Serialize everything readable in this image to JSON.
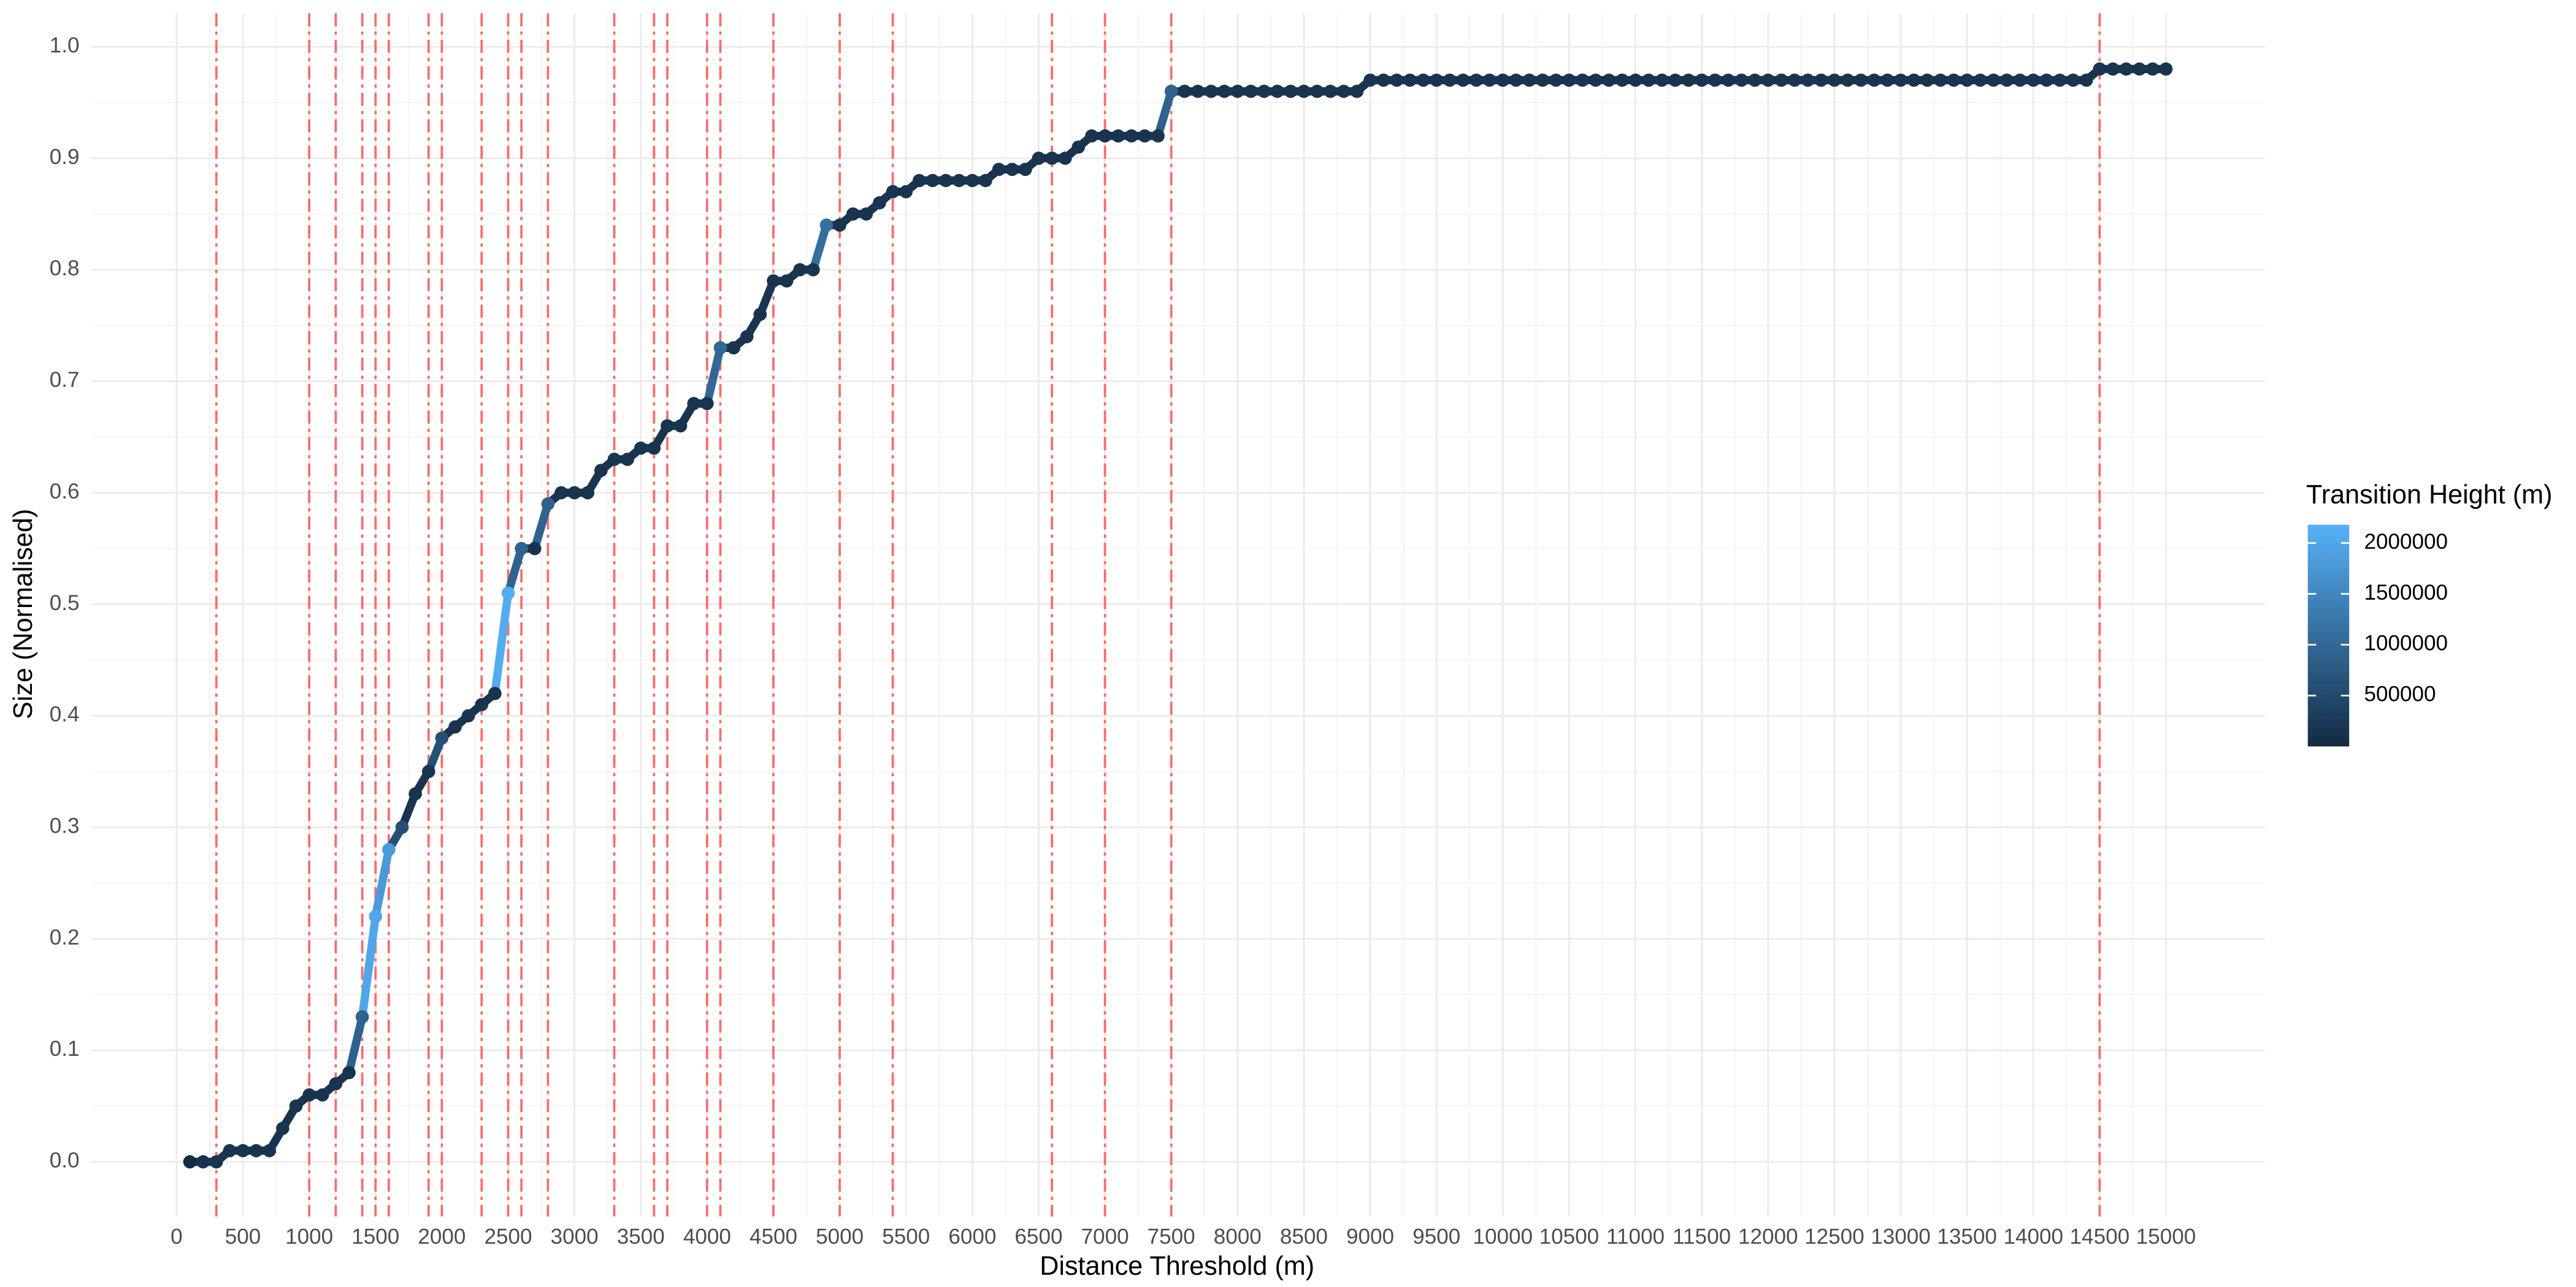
{
  "chart_data": {
    "type": "line",
    "xlabel": "Distance Threshold (m)",
    "ylabel": "Size (Normalised)",
    "x": [
      100,
      200,
      300,
      400,
      500,
      600,
      700,
      800,
      900,
      1000,
      1100,
      1200,
      1300,
      1400,
      1500,
      1600,
      1700,
      1800,
      1900,
      2000,
      2100,
      2200,
      2300,
      2400,
      2500,
      2600,
      2700,
      2800,
      2900,
      3000,
      3100,
      3200,
      3300,
      3400,
      3500,
      3600,
      3700,
      3800,
      3900,
      4000,
      4100,
      4200,
      4300,
      4400,
      4500,
      4600,
      4700,
      4800,
      4900,
      5000,
      5100,
      5200,
      5300,
      5400,
      5500,
      5600,
      5700,
      5800,
      5900,
      6000,
      6100,
      6200,
      6300,
      6400,
      6500,
      6600,
      6700,
      6800,
      6900,
      7000,
      7100,
      7200,
      7300,
      7400,
      7500,
      7600,
      7700,
      7800,
      7900,
      8000,
      8100,
      8200,
      8300,
      8400,
      8500,
      8600,
      8700,
      8800,
      8900,
      9000,
      9100,
      9200,
      9300,
      9400,
      9500,
      9600,
      9700,
      9800,
      9900,
      10000,
      10100,
      10200,
      10300,
      10400,
      10500,
      10600,
      10700,
      10800,
      10900,
      11000,
      11100,
      11200,
      11300,
      11400,
      11500,
      11600,
      11700,
      11800,
      11900,
      12000,
      12100,
      12200,
      12300,
      12400,
      12500,
      12600,
      12700,
      12800,
      12900,
      13000,
      13100,
      13200,
      13300,
      13400,
      13500,
      13600,
      13700,
      13800,
      13900,
      14000,
      14100,
      14200,
      14300,
      14400,
      14500,
      14600,
      14700,
      14800,
      14900,
      15000
    ],
    "series": [
      {
        "values": [
          0,
          0,
          0,
          0.01,
          0.01,
          0.01,
          0.01,
          0.03,
          0.05,
          0.06,
          0.06,
          0.07,
          0.08,
          0.13,
          0.22,
          0.28,
          0.3,
          0.33,
          0.35,
          0.38,
          0.39,
          0.4,
          0.41,
          0.42,
          0.51,
          0.55,
          0.55,
          0.59,
          0.6,
          0.6,
          0.6,
          0.62,
          0.63,
          0.63,
          0.64,
          0.64,
          0.66,
          0.66,
          0.68,
          0.68,
          0.73,
          0.73,
          0.74,
          0.76,
          0.79,
          0.79,
          0.8,
          0.8,
          0.84,
          0.84,
          0.85,
          0.85,
          0.86,
          0.87,
          0.87,
          0.88,
          0.88,
          0.88,
          0.88,
          0.88,
          0.88,
          0.89,
          0.89,
          0.89,
          0.9,
          0.9,
          0.9,
          0.91,
          0.92,
          0.92,
          0.92,
          0.92,
          0.92,
          0.92,
          0.96,
          0.96,
          0.96,
          0.96,
          0.96,
          0.96,
          0.96,
          0.96,
          0.96,
          0.96,
          0.96,
          0.96,
          0.96,
          0.96,
          0.96,
          0.97,
          0.97,
          0.97,
          0.97,
          0.97,
          0.97,
          0.97,
          0.97,
          0.97,
          0.97,
          0.97,
          0.97,
          0.97,
          0.97,
          0.97,
          0.97,
          0.97,
          0.97,
          0.97,
          0.97,
          0.97,
          0.97,
          0.97,
          0.97,
          0.97,
          0.97,
          0.97,
          0.97,
          0.97,
          0.97,
          0.97,
          0.97,
          0.97,
          0.97,
          0.97,
          0.97,
          0.97,
          0.97,
          0.97,
          0.97,
          0.97,
          0.97,
          0.97,
          0.97,
          0.97,
          0.97,
          0.97,
          0.97,
          0.97,
          0.97,
          0.97,
          0.97,
          0.97,
          0.97,
          0.97,
          0.98,
          0.98,
          0.98,
          0.98,
          0.98,
          0.98
        ],
        "color_values": [
          null,
          150000,
          150000,
          150000,
          150000,
          150000,
          150000,
          150000,
          150000,
          150000,
          150000,
          150000,
          150000,
          900000,
          2000000,
          1800000,
          600000,
          150000,
          150000,
          600000,
          150000,
          150000,
          150000,
          150000,
          2100000,
          900000,
          150000,
          900000,
          150000,
          150000,
          150000,
          150000,
          150000,
          150000,
          150000,
          150000,
          150000,
          150000,
          150000,
          150000,
          1000000,
          150000,
          150000,
          150000,
          150000,
          150000,
          150000,
          150000,
          1100000,
          150000,
          150000,
          150000,
          150000,
          150000,
          150000,
          150000,
          150000,
          150000,
          150000,
          150000,
          150000,
          150000,
          150000,
          150000,
          150000,
          150000,
          150000,
          150000,
          150000,
          150000,
          150000,
          150000,
          150000,
          150000,
          900000,
          150000,
          150000,
          150000,
          150000,
          150000,
          150000,
          150000,
          150000,
          150000,
          150000,
          150000,
          150000,
          150000,
          150000,
          150000,
          150000,
          150000,
          150000,
          150000,
          150000,
          150000,
          150000,
          150000,
          150000,
          150000,
          150000,
          150000,
          150000,
          150000,
          150000,
          150000,
          150000,
          150000,
          150000,
          150000,
          150000,
          150000,
          150000,
          150000,
          150000,
          150000,
          150000,
          150000,
          150000,
          150000,
          150000,
          150000,
          150000,
          150000,
          150000,
          150000,
          150000,
          150000,
          150000,
          150000,
          150000,
          150000,
          150000,
          150000,
          150000,
          150000,
          150000,
          150000,
          150000,
          150000,
          150000,
          150000,
          150000,
          150000,
          150000,
          150000,
          150000,
          150000,
          150000,
          150000
        ]
      }
    ],
    "color_scale": {
      "title": "Transition Height (m)",
      "low": "#132B43",
      "high": "#56B1F7",
      "limits": [
        0,
        2180000
      ],
      "ticks": [
        500000,
        1000000,
        1500000,
        2000000
      ]
    },
    "vlines": [
      300,
      1000,
      1200,
      1400,
      1500,
      1600,
      1900,
      2000,
      2300,
      2500,
      2600,
      2800,
      3300,
      3600,
      3700,
      4000,
      4100,
      4500,
      5000,
      5400,
      6600,
      7000,
      7500,
      14500
    ],
    "vline_color": "#FF6B6B",
    "xlim": [
      -645,
      15745
    ],
    "ylim": [
      -0.049,
      1.03
    ],
    "xticks": [
      0,
      500,
      1000,
      1500,
      2000,
      2500,
      3000,
      3500,
      4000,
      4500,
      5000,
      5500,
      6000,
      6500,
      7000,
      7500,
      8000,
      8500,
      9000,
      9500,
      10000,
      10500,
      11000,
      11500,
      12000,
      12500,
      13000,
      13500,
      14000,
      14500,
      15000
    ],
    "yticks": [
      {
        "value": 0,
        "label": "0.0"
      },
      0.1,
      0.2,
      0.3,
      0.4,
      0.5,
      0.6,
      0.7,
      0.8,
      0.9,
      {
        "value": 1,
        "label": "1.0"
      }
    ],
    "grid": true
  }
}
